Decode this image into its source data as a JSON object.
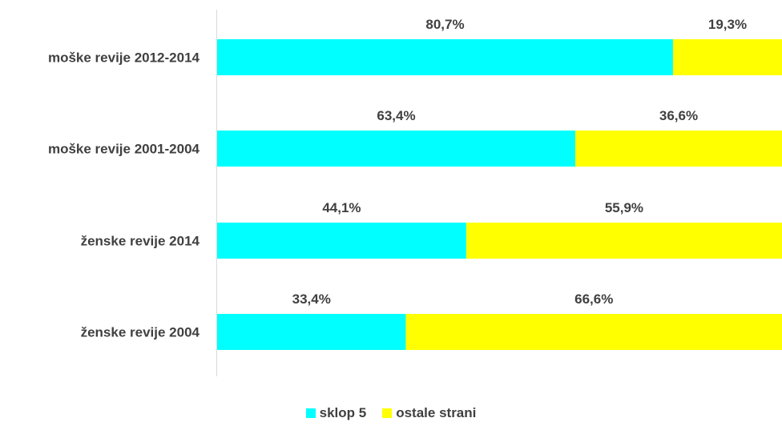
{
  "chart_data": {
    "type": "bar",
    "orientation": "horizontal",
    "stacked": "percent",
    "categories": [
      "moške revije 2012-2014",
      "moške revije 2001-2004",
      "ženske revije 2014",
      "ženske revije 2004"
    ],
    "series": [
      {
        "name": "sklop 5",
        "color": "#00FFFF",
        "values": [
          80.7,
          63.4,
          44.1,
          33.4
        ],
        "labels": [
          "80,7%",
          "63,4%",
          "44,1%",
          "33,4%"
        ]
      },
      {
        "name": "ostale strani",
        "color": "#FFFF00",
        "values": [
          19.3,
          36.6,
          55.9,
          66.6
        ],
        "labels": [
          "19,3%",
          "36,6%",
          "55,9%",
          "66,6%"
        ]
      }
    ],
    "xlim": [
      0,
      100
    ],
    "grid": false,
    "legend": "bottom"
  }
}
